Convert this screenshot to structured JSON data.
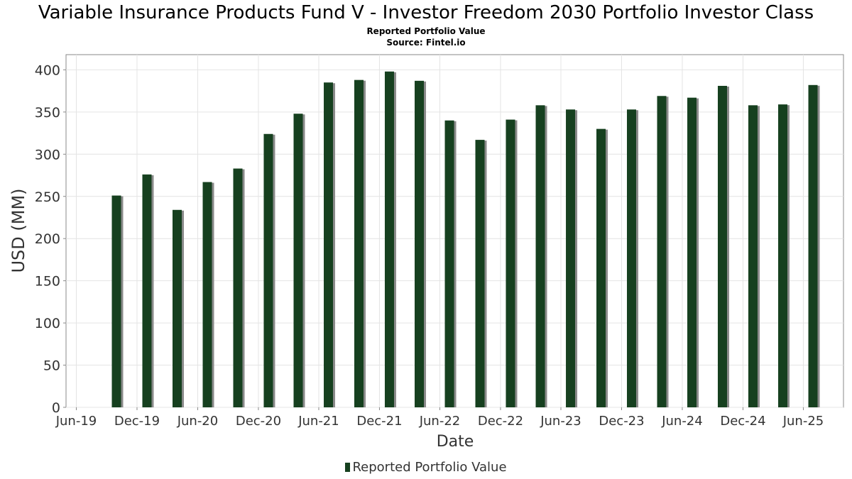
{
  "chart_data": {
    "type": "bar",
    "title": "Variable Insurance Products Fund V - Investor Freedom 2030 Portfolio Investor Class",
    "subtitle": "Reported Portfolio Value",
    "source": "Source: Fintel.io",
    "xlabel": "Date",
    "ylabel": "USD (MM)",
    "ylim": [
      0,
      418
    ],
    "yticks": [
      0,
      50,
      100,
      150,
      200,
      250,
      300,
      350,
      400
    ],
    "xlim": [
      "2019-05-01",
      "2025-09-30"
    ],
    "xticks": [
      "Jun-19",
      "Dec-19",
      "Jun-20",
      "Dec-20",
      "Jun-21",
      "Dec-21",
      "Jun-22",
      "Dec-22",
      "Jun-23",
      "Dec-23",
      "Jun-24",
      "Dec-24",
      "Jun-25"
    ],
    "grid": true,
    "legend_position": "bottom",
    "bar_color": "#16401f",
    "shadow_color": "#8a8a8a",
    "series": [
      {
        "name": "Reported Portfolio Value",
        "x": [
          "2019-09",
          "2019-12",
          "2020-03",
          "2020-06",
          "2020-09",
          "2020-12",
          "2021-03",
          "2021-06",
          "2021-09",
          "2021-12",
          "2022-03",
          "2022-06",
          "2022-09",
          "2022-12",
          "2023-03",
          "2023-06",
          "2023-09",
          "2023-12",
          "2024-03",
          "2024-06",
          "2024-09",
          "2024-12",
          "2025-03",
          "2025-06"
        ],
        "values": [
          251,
          276,
          234,
          267,
          283,
          324,
          348,
          385,
          388,
          398,
          387,
          340,
          317,
          341,
          358,
          353,
          330,
          353,
          369,
          367,
          381,
          358,
          359,
          382
        ]
      }
    ]
  }
}
